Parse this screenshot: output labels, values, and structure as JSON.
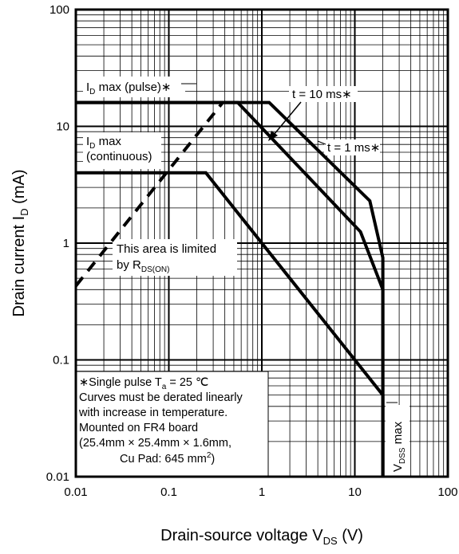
{
  "chart_data": {
    "type": "line",
    "title": "",
    "x_scale": "log",
    "y_scale": "log",
    "xlim": [
      0.01,
      100
    ],
    "ylim": [
      0.01,
      100
    ],
    "grid": true,
    "x_ticks": [
      "0.01",
      "0.1",
      "1",
      "10",
      "100"
    ],
    "y_ticks": [
      "0.01",
      "0.1",
      "1",
      "10",
      "100"
    ],
    "xlabel": {
      "text": "Drain-source voltage  V",
      "sub": "DS",
      "unit": "  (V)"
    },
    "ylabel": {
      "text": "Drain current  I",
      "sub": "D",
      "unit": "  (mA)"
    },
    "series": [
      {
        "name": "I_D max (continuous)",
        "points": [
          [
            0.01,
            4
          ],
          [
            0.25,
            4
          ],
          [
            20,
            0.05
          ],
          [
            20,
            0.01
          ]
        ]
      },
      {
        "name": "t = 10 ms",
        "points": [
          [
            0.01,
            16
          ],
          [
            0.55,
            16
          ],
          [
            11.5,
            1.25
          ],
          [
            20,
            0.4
          ],
          [
            20,
            0.01
          ]
        ]
      },
      {
        "name": "t = 1 ms",
        "points": [
          [
            0.01,
            16
          ],
          [
            1.2,
            16
          ],
          [
            14.5,
            2.3
          ],
          [
            20,
            0.75
          ],
          [
            20,
            0.01
          ]
        ]
      },
      {
        "name": "R_DS(ON) limit",
        "style": "dashed",
        "points": [
          [
            0.01,
            0.43
          ],
          [
            0.38,
            16
          ]
        ]
      }
    ],
    "annotations": {
      "id_pulse": {
        "text": "I",
        "sub": "D",
        "rest": " max (pulse)∗"
      },
      "id_cont": {
        "text": "I",
        "sub": "D",
        "rest": " max",
        "line2": "(continuous)"
      },
      "t10": "t = 10 ms∗",
      "t1": "t = 1 ms∗",
      "rds_line1": "This area is limited",
      "rds_line2": {
        "text": "by R",
        "sub": "DS(ON)"
      },
      "vdss": {
        "text": "V",
        "sub": "DSS",
        "rest": " max"
      }
    },
    "note": {
      "line1": {
        "text": "∗Single pulse T",
        "sub": "a",
        "rest": " = 25 ℃"
      },
      "line2": "Curves must be derated linearly",
      "line3": "with increase in temperature.",
      "line4": "Mounted on FR4 board",
      "line5": " (25.4mm × 25.4mm × 1.6mm,",
      "line6": {
        "text": "Cu Pad: 645 mm",
        "sup": "2",
        "rest": ")"
      }
    }
  }
}
